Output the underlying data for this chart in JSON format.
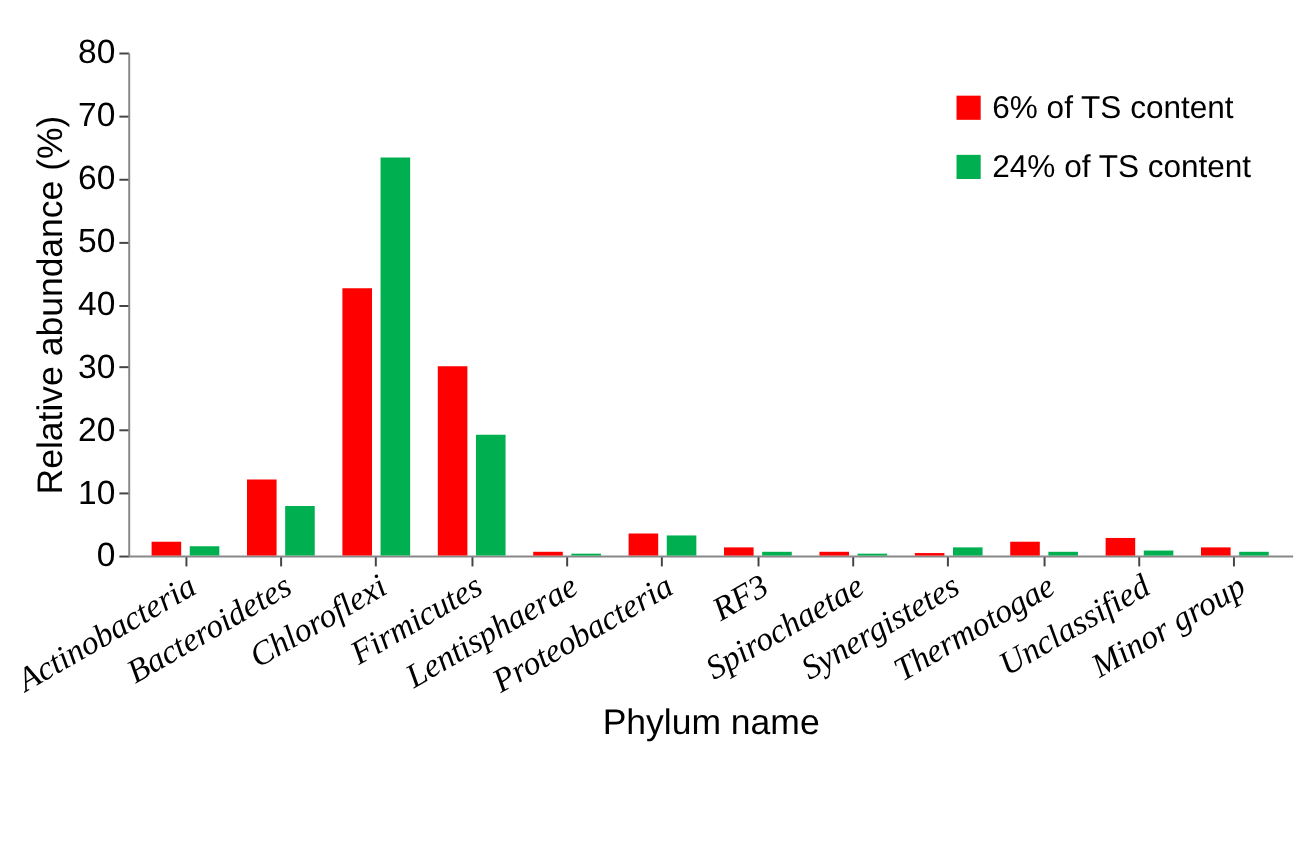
{
  "chart_data": {
    "type": "bar",
    "xlabel": "Phylum name",
    "ylabel": "Relative abundance (%)",
    "categories": [
      "Actinobacteria",
      "Bacteroidetes",
      "Chloroflexi",
      "Firmicutes",
      "Lentisphaerae",
      "Proteobacteria",
      "RF3",
      "Spirochaetae",
      "Synergistetes",
      "Thermotogae",
      "Unclassified",
      "Minor group"
    ],
    "series": [
      {
        "name": "6% of TS content",
        "color": "#ff0000",
        "values": [
          2.2,
          12.1,
          42.5,
          30.1,
          0.6,
          3.5,
          1.3,
          0.6,
          0.4,
          2.2,
          2.8,
          1.3
        ]
      },
      {
        "name": "24% of TS content",
        "color": "#00b050",
        "values": [
          1.5,
          7.9,
          63.3,
          19.2,
          0.3,
          3.2,
          0.6,
          0.3,
          1.3,
          0.6,
          0.8,
          0.6
        ]
      }
    ],
    "ylim": [
      0,
      80
    ],
    "yticks": [
      0,
      10,
      20,
      30,
      40,
      50,
      60,
      70,
      80
    ],
    "grid": false,
    "legend": "top right"
  }
}
